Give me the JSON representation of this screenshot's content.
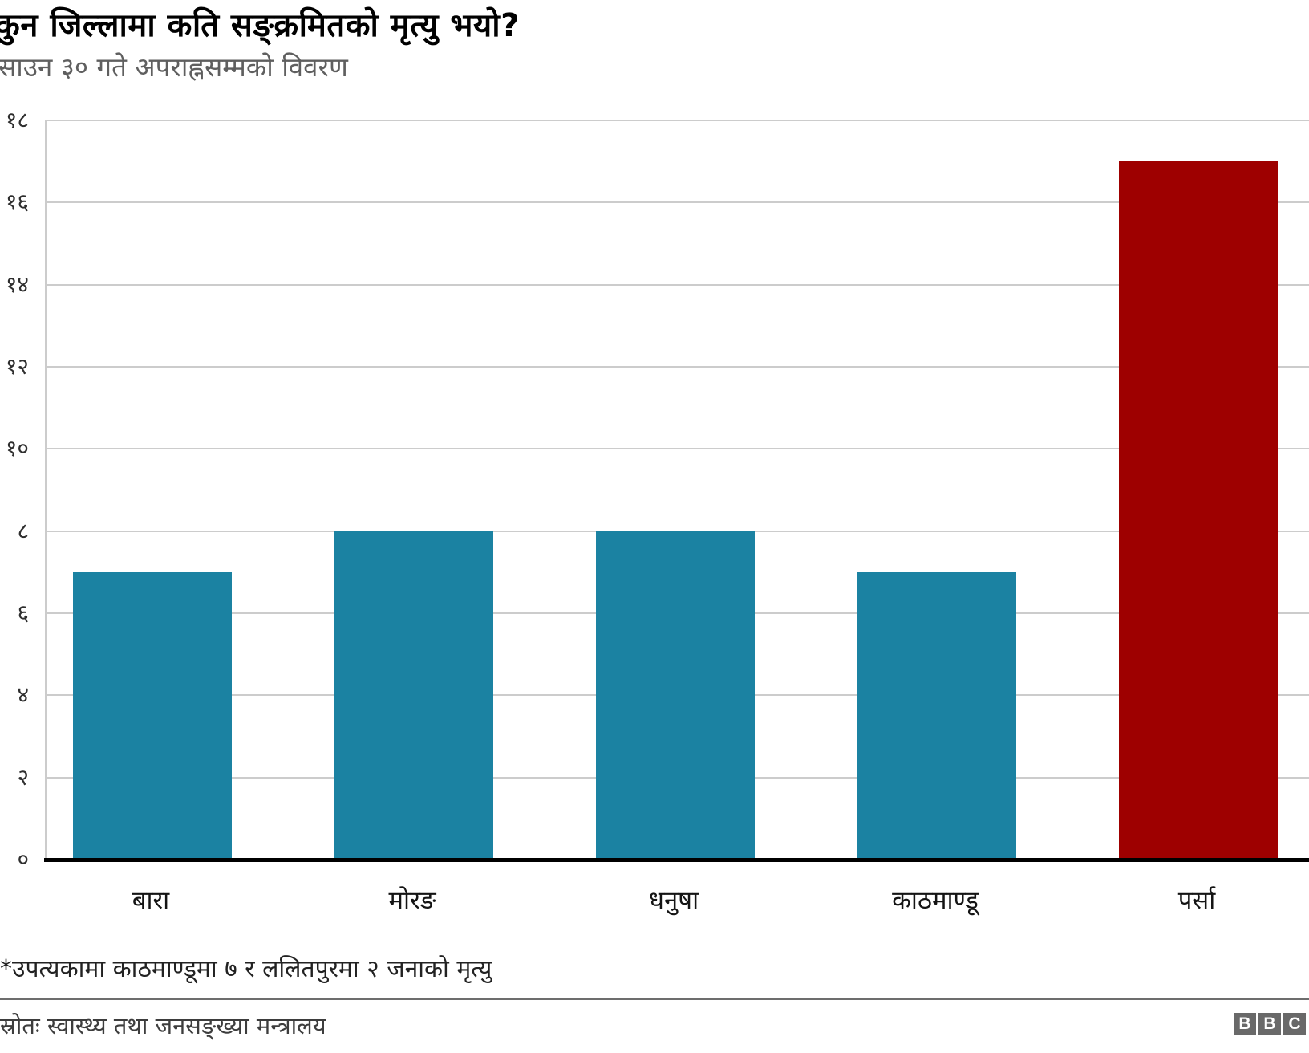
{
  "header": {
    "title": "कुन जिल्लामा कति सङ्क्रमितको मृत्यु भयो?",
    "subtitle": "साउन ३० गते अपराह्नसम्मको विवरण"
  },
  "chart_data": {
    "type": "bar",
    "title": "कुन जिल्लामा कति सङ्क्रमितको मृत्यु भयो?",
    "subtitle": "साउन ३० गते अपराह्नसम्मको विवरण",
    "categories": [
      "बारा",
      "मोरङ",
      "धनुषा",
      "काठमाण्डू",
      "पर्सा"
    ],
    "values": [
      7,
      8,
      8,
      7,
      17
    ],
    "values_devanagari": [
      "७",
      "८",
      "८",
      "७",
      "१७"
    ],
    "bar_colors": [
      "#1B82A2",
      "#1B82A2",
      "#1B82A2",
      "#1B82A2",
      "#9E0000"
    ],
    "xlabel": "",
    "ylabel": "",
    "ylim": [
      0,
      18
    ],
    "ytick_step": 2,
    "ytick_values": [
      0,
      2,
      4,
      6,
      8,
      10,
      12,
      14,
      16,
      18
    ],
    "ytick_labels": [
      "०",
      "२",
      "४",
      "६",
      "८",
      "१०",
      "१२",
      "१४",
      "१६",
      "१८"
    ],
    "grid": "horizontal",
    "legend": "none"
  },
  "footnote": "*उपत्यकामा काठमाण्डूमा ७ र ललितपुरमा २ जनाको मृत्यु",
  "source": "स्रोतः स्वास्थ्य तथा जनसङ्ख्या मन्त्रालय",
  "logo": {
    "letters": [
      "B",
      "B",
      "C"
    ]
  },
  "colors": {
    "bar_default": "#1B82A2",
    "bar_highlight": "#9E0000",
    "gridline": "#CCCCCC",
    "axis_line": "#000000",
    "divider": "#6D6D6D",
    "title_text": "#000000",
    "subtitle_text": "#5F5F5F",
    "footnote_text": "#222222",
    "source_text": "#3D3D3D",
    "logo_bg": "#696969"
  }
}
